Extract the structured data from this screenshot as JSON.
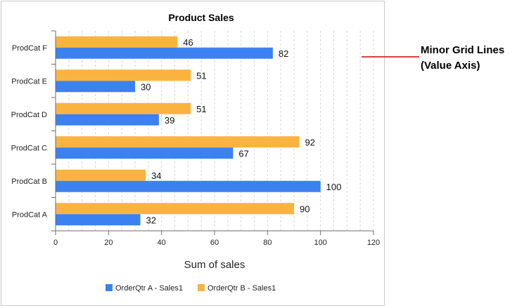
{
  "chart_data": {
    "type": "bar",
    "orientation": "horizontal",
    "title": "Product Sales",
    "xlabel": "Sum of sales",
    "ylabel": "",
    "categories": [
      "ProdCat A",
      "ProdCat B",
      "ProdCat C",
      "ProdCat D",
      "ProdCat E",
      "ProdCat F"
    ],
    "series": [
      {
        "name": "OrderQtr A - Sales1",
        "color": "#3b82f0",
        "values": [
          32,
          100,
          67,
          39,
          30,
          82
        ]
      },
      {
        "name": "OrderQtr B - Sales1",
        "color": "#fbb340",
        "values": [
          90,
          34,
          92,
          51,
          51,
          46
        ]
      }
    ],
    "xlim": [
      0,
      120
    ],
    "xticks": [
      0,
      20,
      40,
      60,
      80,
      100,
      120
    ],
    "minor_grid_step": 5,
    "grid": "minor vertical dashed",
    "legend_position": "bottom"
  },
  "annotation": {
    "line1": "Minor Grid Lines",
    "line2": "(Value Axis)",
    "line_color": "#d00000"
  }
}
